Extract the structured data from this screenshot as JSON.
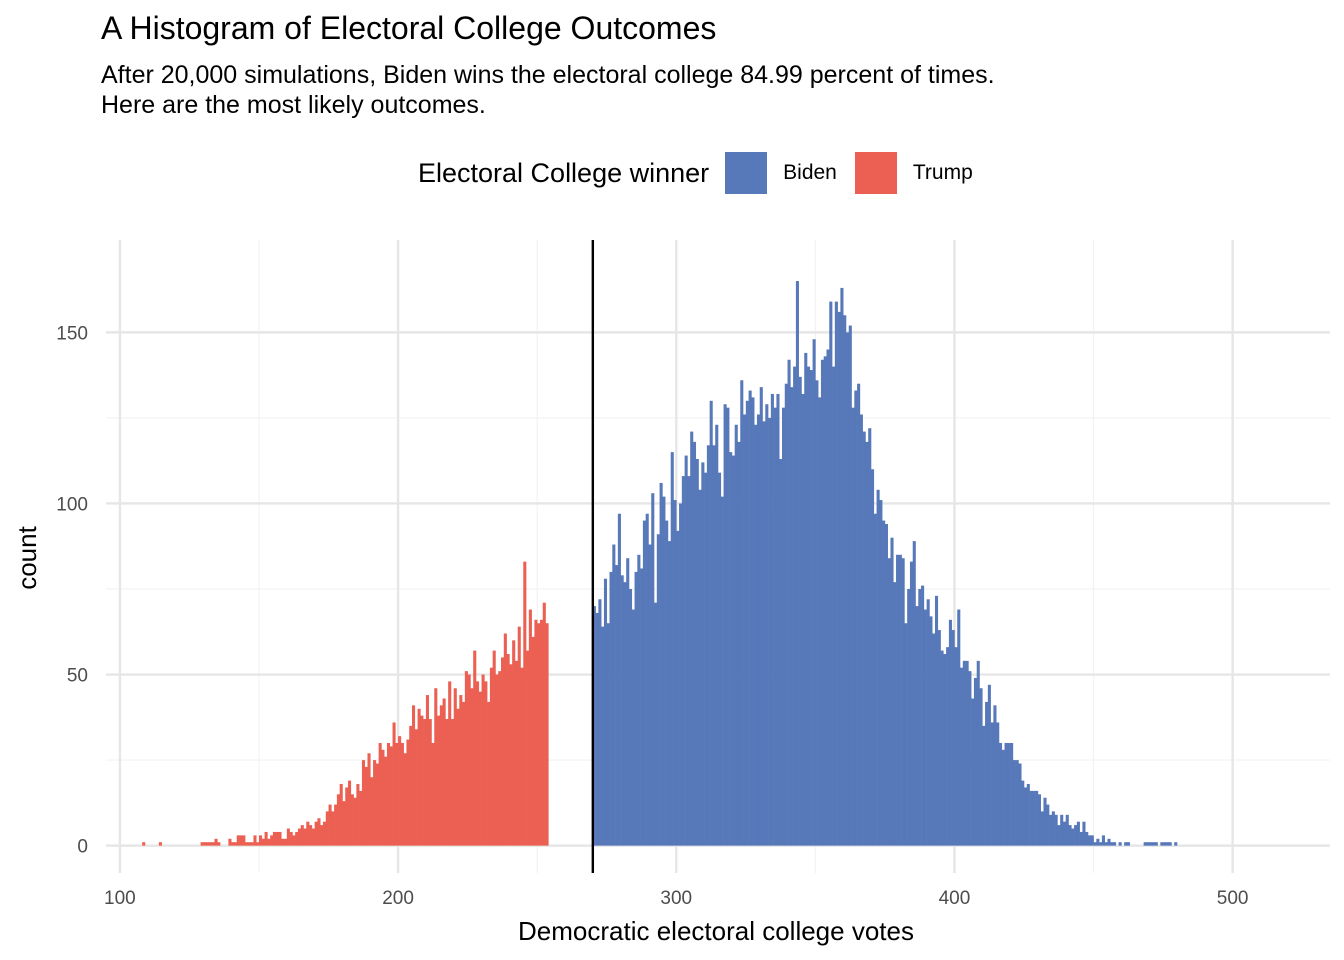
{
  "chart_data": {
    "type": "bar",
    "title": "A Histogram of Electoral College Outcomes",
    "subtitle_lines": [
      "After 20,000 simulations, Biden wins the electoral college 84.99 percent of times.",
      "Here are the most likely outcomes."
    ],
    "xlabel": "Democratic electoral college votes",
    "ylabel": "count",
    "xlim": [
      95,
      535
    ],
    "ylim": [
      -8,
      177
    ],
    "x_ticks": [
      100,
      200,
      300,
      400,
      500
    ],
    "y_ticks": [
      0,
      50,
      100,
      150
    ],
    "grid": true,
    "legend": {
      "title": "Electoral College winner",
      "position": "top",
      "entries": [
        {
          "label": "Biden",
          "color": "#5778B9"
        },
        {
          "label": "Trump",
          "color": "#EB6052"
        }
      ]
    },
    "threshold_line": {
      "x": 270,
      "color": "#000000"
    },
    "bin_width": 1,
    "series": [
      {
        "name": "Trump",
        "color": "#EB6052",
        "x_start": 108,
        "values": [
          1,
          0,
          0,
          0,
          0,
          0,
          1,
          0,
          0,
          0,
          0,
          0,
          0,
          0,
          0,
          0,
          0,
          0,
          0,
          0,
          0,
          1,
          1,
          1,
          1,
          1,
          2,
          1,
          0,
          0,
          0,
          2,
          1,
          1,
          3,
          3,
          3,
          1,
          1,
          1,
          3,
          1,
          3,
          2,
          4,
          2,
          3,
          4,
          4,
          4,
          2,
          2,
          5,
          4,
          3,
          4,
          5,
          6,
          5,
          7,
          6,
          5,
          7,
          8,
          6,
          7,
          10,
          12,
          10,
          12,
          15,
          18,
          13,
          17,
          19,
          15,
          14,
          18,
          16,
          25,
          23,
          27,
          20,
          25,
          24,
          30,
          28,
          26,
          30,
          29,
          36,
          30,
          32,
          30,
          27,
          31,
          35,
          41,
          34,
          40,
          38,
          37,
          44,
          37,
          30,
          46,
          38,
          41,
          43,
          37,
          48,
          37,
          46,
          40,
          44,
          42,
          51,
          50,
          46,
          57,
          48,
          45,
          50,
          48,
          42,
          52,
          57,
          50,
          51,
          55,
          62,
          56,
          53,
          60,
          54,
          64,
          52,
          83,
          57,
          69,
          61,
          66,
          65,
          66,
          71,
          65
        ]
      },
      {
        "name": "Biden",
        "color": "#5778B9",
        "x_start": 270,
        "values": [
          70,
          68,
          72,
          64,
          78,
          65,
          80,
          88,
          82,
          97,
          79,
          77,
          84,
          75,
          69,
          80,
          85,
          81,
          95,
          97,
          88,
          103,
          71,
          91,
          106,
          102,
          95,
          89,
          115,
          101,
          92,
          100,
          108,
          114,
          108,
          121,
          118,
          113,
          104,
          112,
          109,
          117,
          130,
          117,
          123,
          109,
          102,
          129,
          128,
          115,
          114,
          123,
          118,
          136,
          126,
          130,
          133,
          131,
          123,
          126,
          134,
          124,
          129,
          125,
          132,
          128,
          132,
          113,
          128,
          135,
          142,
          134,
          140,
          165,
          137,
          132,
          144,
          140,
          139,
          148,
          136,
          131,
          142,
          143,
          145,
          159,
          140,
          159,
          156,
          163,
          155,
          150,
          152,
          128,
          133,
          135,
          126,
          121,
          118,
          122,
          110,
          97,
          104,
          101,
          95,
          94,
          84,
          90,
          77,
          85,
          85,
          84,
          65,
          75,
          83,
          89,
          70,
          75,
          76,
          69,
          72,
          67,
          62,
          73,
          63,
          57,
          56,
          58,
          66,
          63,
          58,
          69,
          52,
          54,
          54,
          51,
          43,
          49,
          54,
          46,
          35,
          42,
          47,
          36,
          41,
          36,
          30,
          28,
          30,
          30,
          30,
          25,
          25,
          24,
          19,
          17,
          18,
          16,
          16,
          16,
          15,
          10,
          14,
          12,
          9,
          10,
          9,
          6,
          9,
          7,
          9,
          6,
          5,
          6,
          7,
          4,
          7,
          4,
          3,
          3,
          1,
          2,
          1,
          3,
          1,
          2,
          1,
          1,
          0,
          1,
          0,
          1,
          1,
          0,
          0,
          0,
          0,
          0,
          1,
          1,
          1,
          1,
          1,
          0,
          1,
          1,
          1,
          1,
          0,
          1
        ]
      }
    ]
  }
}
